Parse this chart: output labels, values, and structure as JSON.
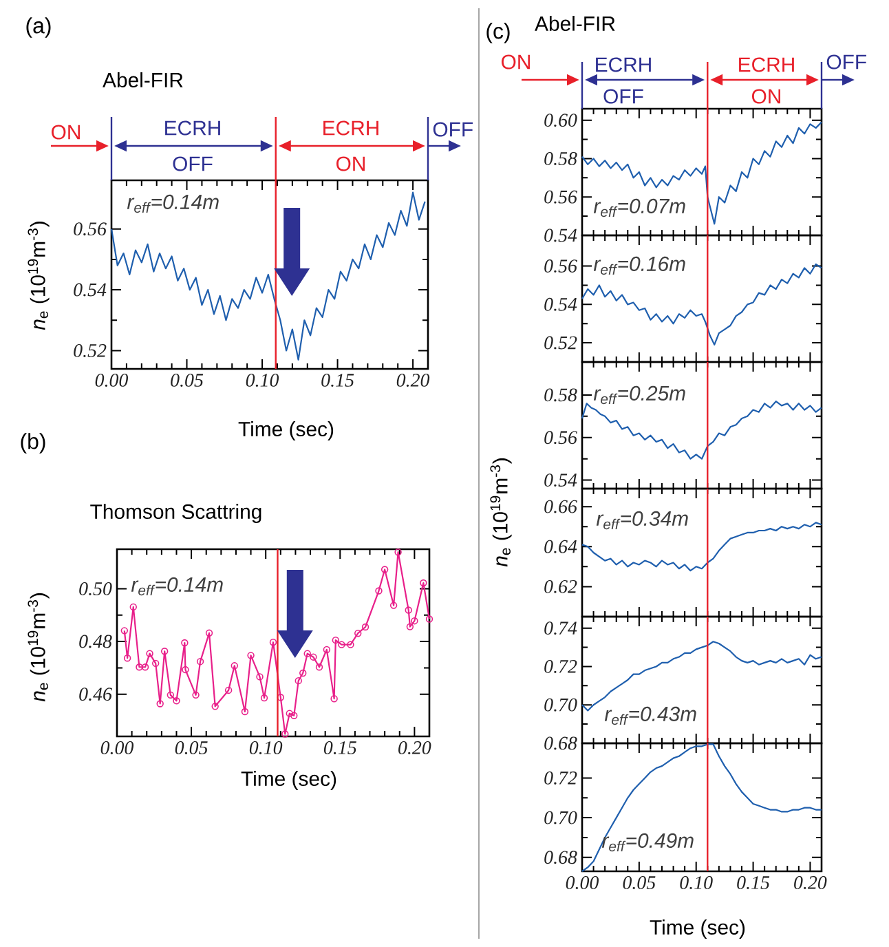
{
  "chart_data": [
    {
      "type": "line",
      "title": "Abel-FIR",
      "xlabel": "Time (sec)",
      "ylabel": "*n*$_{e}$ (10$^{19}$m$^{-3}$)",
      "color": "#1f5fae",
      "x": [
        0,
        0.004,
        0.008,
        0.012,
        0.016,
        0.02,
        0.024,
        0.028,
        0.032,
        0.036,
        0.04,
        0.044,
        0.048,
        0.052,
        0.056,
        0.06,
        0.064,
        0.068,
        0.072,
        0.076,
        0.08,
        0.084,
        0.088,
        0.092,
        0.096,
        0.1,
        0.104,
        0.108,
        0.112,
        0.116,
        0.12,
        0.124,
        0.128,
        0.132,
        0.136,
        0.14,
        0.144,
        0.148,
        0.152,
        0.156,
        0.16,
        0.164,
        0.168,
        0.172,
        0.176,
        0.18,
        0.184,
        0.188,
        0.192,
        0.196,
        0.2,
        0.204,
        0.208
      ],
      "values": [
        0.56,
        0.548,
        0.552,
        0.545,
        0.553,
        0.549,
        0.555,
        0.546,
        0.552,
        0.547,
        0.551,
        0.543,
        0.547,
        0.54,
        0.544,
        0.535,
        0.54,
        0.532,
        0.538,
        0.53,
        0.537,
        0.534,
        0.54,
        0.537,
        0.544,
        0.539,
        0.545,
        0.537,
        0.53,
        0.52,
        0.527,
        0.517,
        0.53,
        0.525,
        0.534,
        0.531,
        0.54,
        0.537,
        0.546,
        0.543,
        0.55,
        0.547,
        0.555,
        0.55,
        0.558,
        0.554,
        0.562,
        0.558,
        0.566,
        0.561,
        0.572,
        0.563,
        0.569
      ],
      "xlim": [
        0,
        0.21
      ],
      "ylim": [
        0.514,
        0.576
      ],
      "xticks": [
        {
          "value": 0,
          "label": "0.00"
        },
        {
          "value": 0.05,
          "label": "0.05"
        },
        {
          "value": 0.1,
          "label": "0.10"
        },
        {
          "value": 0.15,
          "label": "0.15"
        },
        {
          "value": 0.2,
          "label": "0.20"
        }
      ],
      "yticks": [
        0.52,
        0.54,
        0.56
      ],
      "ref_lines": [
        {
          "axis": "x",
          "value": 0.109,
          "color": "#e8202a"
        }
      ],
      "annotations": [
        "(a)",
        "ON",
        "ECRH",
        "OFF",
        "ECRH",
        "ON",
        "OFF",
        "r$_{eff}$=0.14m"
      ]
    },
    {
      "type": "line",
      "title": "Thomson Scattring",
      "xlabel": "Time (sec)",
      "ylabel": "*n*$_{e}$ (10$^{19}$m$^{-3}$)",
      "color": "#e8208a",
      "marker": "circle",
      "x": [
        0.005,
        0.007,
        0.011,
        0.015,
        0.019,
        0.022,
        0.026,
        0.029,
        0.032,
        0.036,
        0.04,
        0.0455,
        0.046,
        0.053,
        0.056,
        0.062,
        0.066,
        0.075,
        0.079,
        0.086,
        0.09,
        0.096,
        0.099,
        0.105,
        0.11,
        0.113,
        0.116,
        0.119,
        0.122,
        0.125,
        0.128,
        0.132,
        0.136,
        0.141,
        0.146,
        0.147,
        0.151,
        0.157,
        0.162,
        0.167,
        0.176,
        0.18,
        0.186,
        0.189,
        0.196,
        0.197,
        0.2,
        0.206,
        0.21
      ],
      "values": [
        0.4841,
        0.4737,
        0.4931,
        0.4703,
        0.4703,
        0.4754,
        0.4717,
        0.4564,
        0.4763,
        0.4597,
        0.4575,
        0.4795,
        0.4693,
        0.4597,
        0.4724,
        0.4832,
        0.4554,
        0.4615,
        0.4708,
        0.4534,
        0.4747,
        0.4666,
        0.4586,
        0.4797,
        0.4588,
        0.4449,
        0.4527,
        0.4519,
        0.4651,
        0.468,
        0.4754,
        0.4741,
        0.4703,
        0.4769,
        0.4583,
        0.4805,
        0.4788,
        0.4788,
        0.4831,
        0.4855,
        0.4992,
        0.5073,
        0.4937,
        0.5139,
        0.4919,
        0.4856,
        0.4878,
        0.5022,
        0.4885
      ],
      "xlim": [
        0,
        0.21
      ],
      "ylim": [
        0.444,
        0.515
      ],
      "xticks": [
        {
          "value": 0,
          "label": "0.00"
        },
        {
          "value": 0.05,
          "label": "0.05"
        },
        {
          "value": 0.1,
          "label": "0.10"
        },
        {
          "value": 0.15,
          "label": "0.15"
        },
        {
          "value": 0.2,
          "label": "0.20"
        }
      ],
      "yticks": [
        0.46,
        0.48,
        {
          "value": 0.5,
          "label": "0.50"
        }
      ],
      "ref_lines": [
        {
          "axis": "x",
          "value": 0.108,
          "color": "#e8202a"
        }
      ],
      "annotations": [
        "(b)",
        "r$_{eff}$=0.14m"
      ]
    },
    {
      "type": "line",
      "title": "Abel-FIR",
      "color": "#1f5fae",
      "tick_labels": "y",
      "x": [
        0,
        0.005,
        0.01,
        0.015,
        0.02,
        0.025,
        0.03,
        0.035,
        0.04,
        0.045,
        0.05,
        0.055,
        0.06,
        0.065,
        0.07,
        0.075,
        0.08,
        0.085,
        0.09,
        0.095,
        0.1,
        0.105,
        0.108,
        0.11,
        0.113,
        0.116,
        0.12,
        0.125,
        0.13,
        0.135,
        0.14,
        0.145,
        0.15,
        0.155,
        0.16,
        0.165,
        0.17,
        0.175,
        0.18,
        0.185,
        0.19,
        0.195,
        0.2,
        0.205,
        0.21
      ],
      "values": [
        0.581,
        0.577,
        0.58,
        0.576,
        0.579,
        0.575,
        0.578,
        0.574,
        0.577,
        0.57,
        0.573,
        0.566,
        0.57,
        0.565,
        0.569,
        0.566,
        0.571,
        0.569,
        0.574,
        0.571,
        0.575,
        0.572,
        0.576,
        0.56,
        0.553,
        0.546,
        0.56,
        0.557,
        0.566,
        0.563,
        0.573,
        0.57,
        0.58,
        0.577,
        0.584,
        0.581,
        0.589,
        0.586,
        0.592,
        0.588,
        0.596,
        0.593,
        0.598,
        0.596,
        0.599
      ],
      "xlim": [
        0,
        0.21
      ],
      "ylim": [
        0.54,
        0.606
      ],
      "xticks": [
        {
          "value": 0,
          "label": null
        },
        {
          "value": 0.05,
          "label": null
        },
        {
          "value": 0.1,
          "label": null
        },
        {
          "value": 0.15,
          "label": null
        },
        {
          "value": 0.2,
          "label": null
        }
      ],
      "yticks": [
        0.54,
        0.56,
        0.58,
        {
          "value": 0.6,
          "label": "0.60"
        }
      ],
      "ref_lines": [
        {
          "axis": "x",
          "value": 0.11,
          "color": "#e8202a"
        }
      ],
      "annotations": [
        "(c)",
        "ON",
        "ECRH",
        "OFF",
        "ECRH",
        "ON",
        "OFF",
        "r$_{eff}$=0.07m"
      ]
    },
    {
      "type": "line",
      "color": "#1f5fae",
      "tick_labels": "y",
      "x": [
        0,
        0.005,
        0.01,
        0.015,
        0.02,
        0.025,
        0.03,
        0.035,
        0.04,
        0.045,
        0.05,
        0.055,
        0.06,
        0.065,
        0.07,
        0.075,
        0.08,
        0.085,
        0.09,
        0.095,
        0.1,
        0.105,
        0.108,
        0.112,
        0.116,
        0.12,
        0.125,
        0.13,
        0.135,
        0.14,
        0.145,
        0.15,
        0.155,
        0.16,
        0.165,
        0.17,
        0.175,
        0.18,
        0.185,
        0.19,
        0.195,
        0.2,
        0.205,
        0.21
      ],
      "values": [
        0.543,
        0.548,
        0.545,
        0.55,
        0.544,
        0.547,
        0.542,
        0.545,
        0.54,
        0.541,
        0.537,
        0.538,
        0.532,
        0.535,
        0.531,
        0.534,
        0.53,
        0.535,
        0.533,
        0.537,
        0.534,
        0.535,
        0.531,
        0.524,
        0.519,
        0.525,
        0.527,
        0.529,
        0.534,
        0.536,
        0.54,
        0.541,
        0.546,
        0.545,
        0.55,
        0.548,
        0.553,
        0.551,
        0.556,
        0.554,
        0.559,
        0.556,
        0.561,
        0.559
      ],
      "xlim": [
        0,
        0.21
      ],
      "ylim": [
        0.51,
        0.576
      ],
      "xticks": [
        {
          "value": 0,
          "label": null
        },
        {
          "value": 0.05,
          "label": null
        },
        {
          "value": 0.1,
          "label": null
        },
        {
          "value": 0.15,
          "label": null
        },
        {
          "value": 0.2,
          "label": null
        }
      ],
      "yticks": [
        0.52,
        0.54,
        0.56
      ],
      "ref_lines": [
        {
          "axis": "x",
          "value": 0.11,
          "color": "#e8202a"
        }
      ],
      "annotations": [
        "r$_{eff}$=0.16m"
      ]
    },
    {
      "type": "line",
      "color": "#1f5fae",
      "tick_labels": "y",
      "x": [
        0,
        0.004,
        0.008,
        0.012,
        0.016,
        0.02,
        0.025,
        0.03,
        0.035,
        0.04,
        0.045,
        0.05,
        0.055,
        0.06,
        0.065,
        0.07,
        0.075,
        0.08,
        0.085,
        0.09,
        0.095,
        0.1,
        0.105,
        0.11,
        0.115,
        0.12,
        0.125,
        0.13,
        0.135,
        0.14,
        0.145,
        0.15,
        0.155,
        0.16,
        0.165,
        0.17,
        0.175,
        0.18,
        0.185,
        0.19,
        0.195,
        0.2,
        0.205,
        0.21
      ],
      "values": [
        0.569,
        0.576,
        0.574,
        0.573,
        0.571,
        0.57,
        0.567,
        0.568,
        0.564,
        0.565,
        0.561,
        0.562,
        0.559,
        0.561,
        0.558,
        0.559,
        0.555,
        0.557,
        0.553,
        0.554,
        0.55,
        0.552,
        0.55,
        0.556,
        0.558,
        0.562,
        0.561,
        0.565,
        0.566,
        0.569,
        0.57,
        0.573,
        0.572,
        0.576,
        0.574,
        0.577,
        0.575,
        0.576,
        0.573,
        0.576,
        0.573,
        0.575,
        0.572,
        0.574
      ],
      "xlim": [
        0,
        0.21
      ],
      "ylim": [
        0.536,
        0.5955
      ],
      "xticks": [
        {
          "value": 0,
          "label": null
        },
        {
          "value": 0.05,
          "label": null
        },
        {
          "value": 0.1,
          "label": null
        },
        {
          "value": 0.15,
          "label": null
        },
        {
          "value": 0.2,
          "label": null
        }
      ],
      "yticks": [
        0.54,
        0.56,
        0.58
      ],
      "ref_lines": [
        {
          "axis": "x",
          "value": 0.11,
          "color": "#e8202a"
        }
      ],
      "annotations": [
        "r$_{eff}$=0.25m"
      ]
    },
    {
      "type": "line",
      "ylabel": "*n*$_{e}$ (10$^{19}$m$^{-3}$)",
      "color": "#1f5fae",
      "tick_labels": "y",
      "x": [
        0,
        0.005,
        0.01,
        0.015,
        0.02,
        0.025,
        0.03,
        0.035,
        0.04,
        0.045,
        0.05,
        0.055,
        0.06,
        0.065,
        0.07,
        0.075,
        0.08,
        0.085,
        0.09,
        0.095,
        0.1,
        0.105,
        0.11,
        0.115,
        0.12,
        0.125,
        0.13,
        0.135,
        0.14,
        0.145,
        0.15,
        0.155,
        0.16,
        0.165,
        0.17,
        0.175,
        0.18,
        0.185,
        0.19,
        0.195,
        0.2,
        0.205,
        0.21
      ],
      "values": [
        0.641,
        0.64,
        0.637,
        0.635,
        0.633,
        0.634,
        0.631,
        0.633,
        0.63,
        0.632,
        0.631,
        0.633,
        0.632,
        0.63,
        0.633,
        0.631,
        0.632,
        0.629,
        0.631,
        0.628,
        0.63,
        0.629,
        0.632,
        0.634,
        0.638,
        0.641,
        0.644,
        0.645,
        0.646,
        0.647,
        0.647,
        0.648,
        0.648,
        0.649,
        0.648,
        0.65,
        0.649,
        0.65,
        0.649,
        0.651,
        0.65,
        0.652,
        0.651
      ],
      "xlim": [
        0,
        0.21
      ],
      "ylim": [
        0.605,
        0.669
      ],
      "xticks": [
        {
          "value": 0,
          "label": null
        },
        {
          "value": 0.05,
          "label": null
        },
        {
          "value": 0.1,
          "label": null
        },
        {
          "value": 0.15,
          "label": null
        },
        {
          "value": 0.2,
          "label": null
        }
      ],
      "yticks": [
        0.62,
        0.64,
        0.66
      ],
      "ref_lines": [
        {
          "axis": "x",
          "value": 0.11,
          "color": "#e8202a"
        }
      ],
      "annotations": [
        "r$_{eff}$=0.34m"
      ]
    },
    {
      "type": "line",
      "color": "#1f5fae",
      "tick_labels": "y",
      "x": [
        0,
        0.005,
        0.01,
        0.015,
        0.02,
        0.025,
        0.03,
        0.035,
        0.04,
        0.045,
        0.05,
        0.055,
        0.06,
        0.065,
        0.07,
        0.075,
        0.08,
        0.085,
        0.09,
        0.095,
        0.1,
        0.105,
        0.11,
        0.115,
        0.12,
        0.125,
        0.13,
        0.135,
        0.14,
        0.145,
        0.15,
        0.155,
        0.16,
        0.165,
        0.17,
        0.175,
        0.18,
        0.185,
        0.19,
        0.195,
        0.2,
        0.205,
        0.21
      ],
      "values": [
        0.7,
        0.697,
        0.7,
        0.702,
        0.704,
        0.707,
        0.709,
        0.711,
        0.713,
        0.716,
        0.716,
        0.718,
        0.719,
        0.72,
        0.722,
        0.722,
        0.724,
        0.725,
        0.727,
        0.727,
        0.729,
        0.73,
        0.731,
        0.733,
        0.732,
        0.73,
        0.728,
        0.725,
        0.723,
        0.722,
        0.723,
        0.721,
        0.722,
        0.723,
        0.722,
        0.724,
        0.722,
        0.723,
        0.724,
        0.721,
        0.726,
        0.724,
        0.725
      ],
      "xlim": [
        0,
        0.21
      ],
      "ylim": [
        0.68,
        0.746
      ],
      "xticks": [
        {
          "value": 0,
          "label": null
        },
        {
          "value": 0.05,
          "label": null
        },
        {
          "value": 0.1,
          "label": null
        },
        {
          "value": 0.15,
          "label": null
        },
        {
          "value": 0.2,
          "label": null
        }
      ],
      "yticks": [
        0.68,
        {
          "value": 0.7,
          "label": "0.70"
        },
        0.72,
        0.74
      ],
      "ref_lines": [
        {
          "axis": "x",
          "value": 0.11,
          "color": "#e8202a"
        }
      ],
      "annotations": [
        "r$_{eff}$=0.43m"
      ]
    },
    {
      "type": "line",
      "xlabel": "Time (sec)",
      "color": "#1f5fae",
      "x": [
        0,
        0.005,
        0.01,
        0.015,
        0.02,
        0.025,
        0.03,
        0.035,
        0.04,
        0.045,
        0.05,
        0.055,
        0.06,
        0.065,
        0.07,
        0.075,
        0.08,
        0.085,
        0.09,
        0.095,
        0.1,
        0.105,
        0.11,
        0.115,
        0.12,
        0.125,
        0.13,
        0.135,
        0.14,
        0.145,
        0.15,
        0.155,
        0.16,
        0.165,
        0.17,
        0.175,
        0.18,
        0.185,
        0.19,
        0.195,
        0.2,
        0.205,
        0.21
      ],
      "values": [
        0.673,
        0.675,
        0.678,
        0.684,
        0.69,
        0.695,
        0.7,
        0.705,
        0.71,
        0.714,
        0.717,
        0.72,
        0.723,
        0.725,
        0.726,
        0.728,
        0.73,
        0.731,
        0.733,
        0.735,
        0.736,
        0.736,
        0.737,
        0.737,
        0.731,
        0.726,
        0.722,
        0.717,
        0.713,
        0.71,
        0.707,
        0.706,
        0.705,
        0.704,
        0.704,
        0.703,
        0.703,
        0.704,
        0.704,
        0.705,
        0.705,
        0.704,
        0.704
      ],
      "xlim": [
        0,
        0.21
      ],
      "ylim": [
        0.673,
        0.7375
      ],
      "xticks": [
        {
          "value": 0,
          "label": "0.00"
        },
        {
          "value": 0.05,
          "label": "0.05"
        },
        {
          "value": 0.1,
          "label": "0.10"
        },
        {
          "value": 0.15,
          "label": "0.15"
        },
        {
          "value": 0.2,
          "label": "0.20"
        }
      ],
      "yticks": [
        0.68,
        {
          "value": 0.7,
          "label": "0.70"
        },
        0.72
      ],
      "ref_lines": [
        {
          "axis": "x",
          "value": 0.11,
          "color": "#e8202a"
        }
      ],
      "annotations": [
        "r$_{eff}$=0.49m"
      ]
    }
  ]
}
